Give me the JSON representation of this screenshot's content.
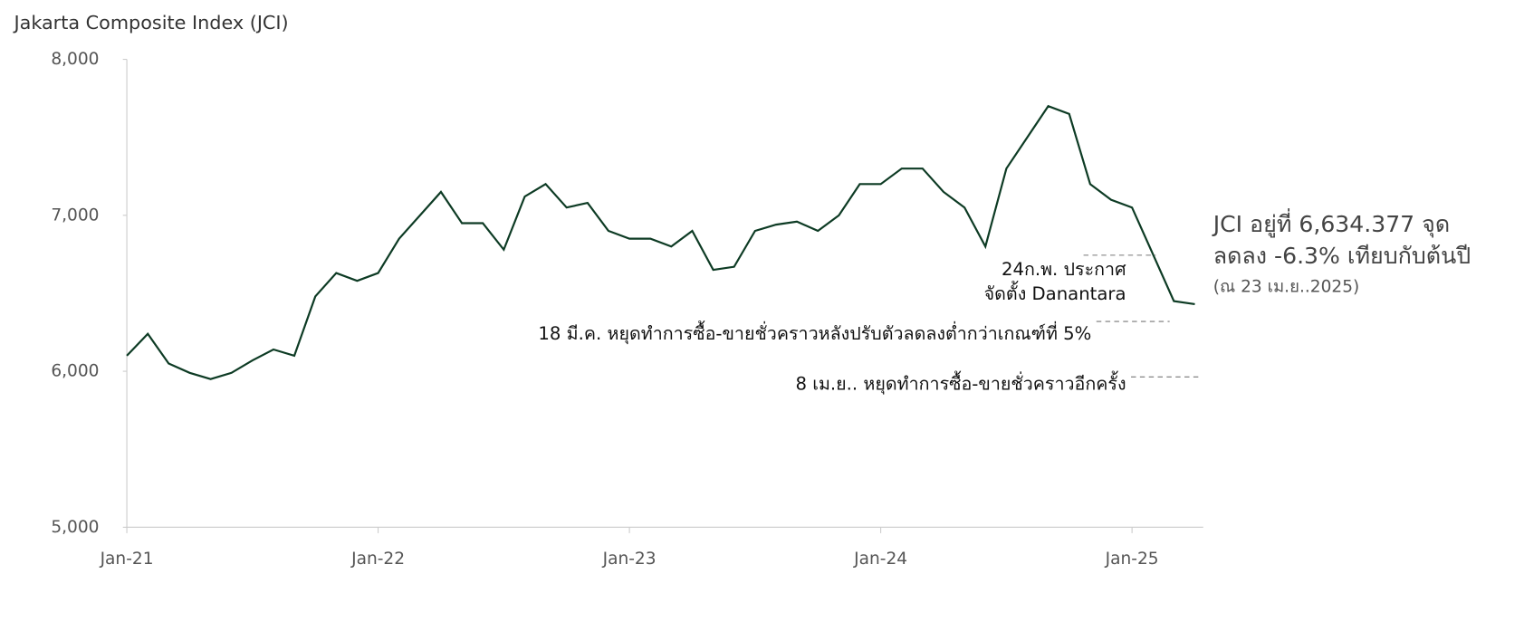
{
  "chart_data": {
    "type": "line",
    "title": "Jakarta Composite Index (JCI)",
    "x": [
      "Jan-21",
      "Feb-21",
      "Mar-21",
      "Apr-21",
      "May-21",
      "Jun-21",
      "Jul-21",
      "Aug-21",
      "Sep-21",
      "Oct-21",
      "Nov-21",
      "Dec-21",
      "Jan-22",
      "Feb-22",
      "Mar-22",
      "Apr-22",
      "May-22",
      "Jun-22",
      "Jul-22",
      "Aug-22",
      "Sep-22",
      "Oct-22",
      "Nov-22",
      "Dec-22",
      "Jan-23",
      "Feb-23",
      "Mar-23",
      "Apr-23",
      "May-23",
      "Jun-23",
      "Jul-23",
      "Aug-23",
      "Sep-23",
      "Oct-23",
      "Nov-23",
      "Dec-23",
      "Jan-24",
      "Feb-24",
      "Mar-24",
      "Apr-24",
      "May-24",
      "Jun-24",
      "Jul-24",
      "Aug-24",
      "Sep-24",
      "Oct-24",
      "Nov-24",
      "Dec-24",
      "Jan-25",
      "Feb-25",
      "Mar-25",
      "Apr-25"
    ],
    "series": [
      {
        "name": "JCI",
        "color": "#0d3b24",
        "values": [
          6100,
          6240,
          6050,
          5990,
          5950,
          5990,
          6070,
          6140,
          6100,
          6480,
          6630,
          6580,
          6630,
          6850,
          7000,
          7150,
          6950,
          6950,
          6780,
          7120,
          7200,
          7050,
          7080,
          6900,
          6850,
          6850,
          6800,
          6900,
          6650,
          6670,
          6900,
          6940,
          6960,
          6900,
          7000,
          7200,
          7200,
          7300,
          7300,
          7150,
          7050,
          6800,
          7300,
          7500,
          7700,
          7650,
          7200,
          7100,
          7050,
          6750,
          6450,
          6430
        ]
      }
    ],
    "xticks": [
      "Jan-21",
      "Jan-22",
      "Jan-23",
      "Jan-24",
      "Jan-25"
    ],
    "ylim": [
      5000,
      8000
    ],
    "yticks": [
      {
        "value": 5000,
        "label": "5,000"
      },
      {
        "value": 6000,
        "label": "6,000"
      },
      {
        "value": 7000,
        "label": "7,000"
      },
      {
        "value": 8000,
        "label": "8,000"
      }
    ],
    "annotations": {
      "danantara": [
        "24ก.พ. ประกาศ",
        "จัดตั้ง Danantara"
      ],
      "halt1": "18 มี.ค. หยุดทำการซื้อ-ขายชั่วคราวหลังปรับตัวลดลงต่ำกว่าเกณฑ์ที่ 5%",
      "halt2": "8 เม.ย.. หยุดทำการซื้อ-ขายชั่วคราวอีกครั้ง",
      "summary": [
        "JCI อยู่ที่ 6,634.377 จุด",
        "ลดลง -6.3% เทียบกับต้นปี",
        "(ณ 23 เม.ย..2025)"
      ]
    }
  }
}
